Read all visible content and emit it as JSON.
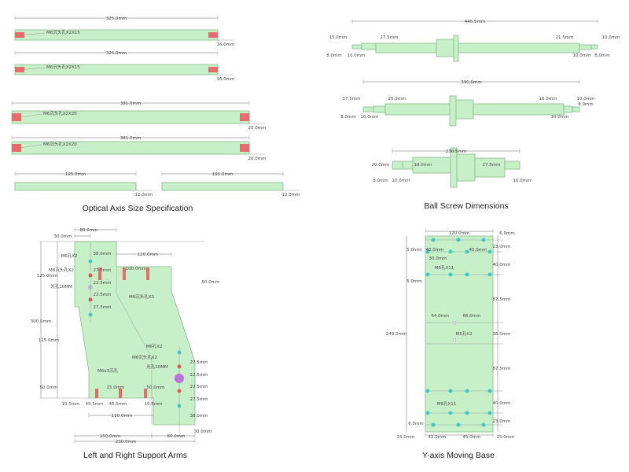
{
  "colors": {
    "part": "#c8f0c8",
    "slot": "#e86a6a",
    "tapped_hole": "#3cc8c8",
    "counterbore": "#d9534f",
    "through_hole": "#c070e0"
  },
  "optical": {
    "title": "Optical Axis Size Specification",
    "bars": [
      {
        "length": "325.0mm",
        "height": "16.0mm",
        "hole_label": "M6沉头孔X2X15"
      },
      {
        "length": "325.0mm",
        "height": "16.0mm",
        "hole_label": "M6沉头孔X2X15"
      },
      {
        "length": "381.0mm",
        "height": "20.0mm",
        "hole_label": "M6沉头孔X2X20"
      },
      {
        "length": "381.0mm",
        "height": "20.0mm",
        "hole_label": "M6沉头孔X2X20"
      },
      {
        "length": "195.0mm",
        "height": "12.0mm"
      },
      {
        "length": "195.0mm",
        "height": "12.0mm"
      }
    ]
  },
  "ballscrew": {
    "title": "Ball Screw Dimensions",
    "screws": [
      {
        "total": "445.5mm",
        "labels": [
          "15.0mm",
          "27.5mm",
          "21.5mm",
          "10.0mm",
          "8.0mm",
          "10.0mm",
          "10.0mm",
          "8.0mm"
        ]
      },
      {
        "total": "390.0mm",
        "labels": [
          "17.5mm",
          "25.0mm",
          "16.0mm",
          "10.0mm",
          "8.0mm",
          "8.0mm",
          "10.0mm",
          "10.0mm"
        ]
      },
      {
        "total": "230.5mm",
        "labels": [
          "20.0mm",
          "18.0mm",
          "27.5mm",
          "8.0mm",
          "10.0mm",
          "10.0mm"
        ]
      }
    ]
  },
  "arms": {
    "title": "Left and Right Support Arms",
    "labels": [
      "80.0mm",
      "30.0mm",
      "38.0mm",
      "M6孔X2",
      "M6沉头孔X2",
      "125.0mm",
      "27.5mm",
      "光孔10MM",
      "22.5mm",
      "22.5mm",
      "27.5mm",
      "120.0mm",
      "100.0mm",
      "50.0mm",
      "M6沉头孔X3",
      "300.0mm",
      "125.0mm",
      "M6孔X2",
      "M6沉头孔X2",
      "光孔10MM",
      "27.5mm",
      "22.5mm",
      "22.5mm",
      "27.5mm",
      "38.0mm",
      "M6x3沉孔",
      "15.0mm",
      "50.0mm",
      "50.0mm",
      "15.5mm",
      "45.5mm",
      "45.5mm",
      "15.8mm",
      "120.0mm",
      "30.0mm",
      "150.0mm",
      "80.0mm",
      "230.0mm"
    ]
  },
  "base": {
    "title": "Y-axis Moving Base",
    "labels": [
      "120.0mm",
      "6.0mm",
      "23.0mm",
      "5.0mm",
      "40.0mm",
      "40.0mm",
      "30.0mm",
      "40.0mm",
      "M6孔X11",
      "5.0mm",
      "87.5mm",
      "54.0mm",
      "66.0mm",
      "249.0mm",
      "36.0mm",
      "M5孔X2",
      "87.5mm",
      "40.0mm",
      "M6孔X11",
      "23.0mm",
      "6.0mm",
      "15.0mm",
      "45.0mm",
      "45.0mm",
      "15.0mm"
    ]
  }
}
